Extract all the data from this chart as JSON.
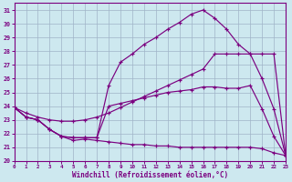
{
  "xlabel": "Windchill (Refroidissement éolien,°C)",
  "xlim": [
    0,
    23
  ],
  "ylim": [
    20,
    31.5
  ],
  "yticks": [
    20,
    21,
    22,
    23,
    24,
    25,
    26,
    27,
    28,
    29,
    30,
    31
  ],
  "xticks": [
    0,
    1,
    2,
    3,
    4,
    5,
    6,
    7,
    8,
    9,
    10,
    11,
    12,
    13,
    14,
    15,
    16,
    17,
    18,
    19,
    20,
    21,
    22,
    23
  ],
  "background_color": "#cde8ef",
  "line_color": "#7b0080",
  "grid_color": "#a0b4c8",
  "curve_top_x": [
    0,
    1,
    2,
    3,
    4,
    5,
    6,
    7,
    8,
    9,
    10,
    11,
    12,
    13,
    14,
    15,
    16,
    17,
    18,
    19,
    20,
    21,
    22,
    23
  ],
  "curve_top_y": [
    23.9,
    23.2,
    23.0,
    22.3,
    21.8,
    21.7,
    21.7,
    21.7,
    25.5,
    27.2,
    27.8,
    28.5,
    29.0,
    29.6,
    30.1,
    30.7,
    31.0,
    30.4,
    29.6,
    28.5,
    27.8,
    26.0,
    23.8,
    20.4
  ],
  "curve_diag_x": [
    0,
    1,
    2,
    3,
    4,
    5,
    6,
    7,
    8,
    9,
    10,
    11,
    12,
    13,
    14,
    15,
    16,
    17,
    18,
    19,
    20,
    21,
    22,
    23
  ],
  "curve_diag_y": [
    23.9,
    23.5,
    23.2,
    23.0,
    22.9,
    22.9,
    23.0,
    23.2,
    23.5,
    23.9,
    24.3,
    24.7,
    25.1,
    25.5,
    25.9,
    26.3,
    26.7,
    27.8,
    27.8,
    27.8,
    27.8,
    27.8,
    27.8,
    20.4
  ],
  "curve_mid_x": [
    0,
    1,
    2,
    3,
    4,
    5,
    6,
    7,
    8,
    9,
    10,
    11,
    12,
    13,
    14,
    15,
    16,
    17,
    18,
    19,
    20,
    21,
    22,
    23
  ],
  "curve_mid_y": [
    23.9,
    23.2,
    23.0,
    22.3,
    21.8,
    21.7,
    21.7,
    21.7,
    24.0,
    24.2,
    24.4,
    24.6,
    24.8,
    25.0,
    25.1,
    25.2,
    25.4,
    25.4,
    25.3,
    25.3,
    25.5,
    23.8,
    21.8,
    20.4
  ],
  "curve_bot_x": [
    0,
    1,
    2,
    3,
    4,
    5,
    6,
    7,
    8,
    9,
    10,
    11,
    12,
    13,
    14,
    15,
    16,
    17,
    18,
    19,
    20,
    21,
    22,
    23
  ],
  "curve_bot_y": [
    23.9,
    23.2,
    23.0,
    22.3,
    21.8,
    21.5,
    21.6,
    21.5,
    21.4,
    21.3,
    21.2,
    21.2,
    21.1,
    21.1,
    21.0,
    21.0,
    21.0,
    21.0,
    21.0,
    21.0,
    21.0,
    20.9,
    20.6,
    20.4
  ]
}
